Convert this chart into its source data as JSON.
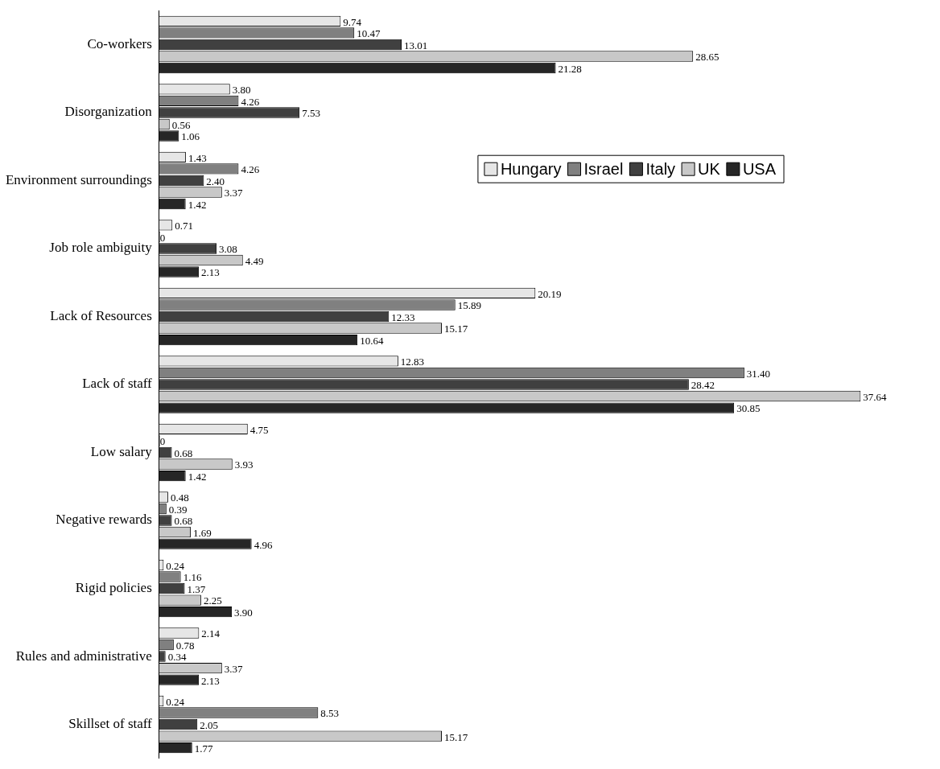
{
  "chart_data": {
    "type": "bar",
    "orientation": "horizontal",
    "categories": [
      "Co-workers",
      "Disorganization",
      "Environment surroundings",
      "Job role ambiguity",
      "Lack of Resources",
      "Lack of staff",
      "Low salary",
      "Negative rewards",
      "Rigid policies",
      "Rules and administrative",
      "Skillset of staff"
    ],
    "series": [
      {
        "name": "Hungary",
        "color": "#e6e6e6",
        "values": [
          9.74,
          3.8,
          1.43,
          0.71,
          20.19,
          12.83,
          4.75,
          0.48,
          0.24,
          2.14,
          0.24
        ],
        "value_labels": [
          "9.74",
          "3.80",
          "1.43",
          "0.71",
          "20.19",
          "12.83",
          "4.75",
          "0.48",
          "0.24",
          "2.14",
          "0.24"
        ]
      },
      {
        "name": "Israel",
        "color": "#808080",
        "values": [
          10.47,
          4.26,
          4.26,
          0,
          15.89,
          31.4,
          0,
          0.39,
          1.16,
          0.78,
          8.53
        ],
        "value_labels": [
          "10.47",
          "4.26",
          "4.26",
          "0",
          "15.89",
          "31.40",
          "0",
          "0.39",
          "1.16",
          "0.78",
          "8.53"
        ]
      },
      {
        "name": "Italy",
        "color": "#404040",
        "values": [
          13.01,
          7.53,
          2.4,
          3.08,
          12.33,
          28.42,
          0.68,
          0.68,
          1.37,
          0.34,
          2.05
        ],
        "value_labels": [
          "13.01",
          "7.53",
          "2.40",
          "3.08",
          "12.33",
          "28.42",
          "0.68",
          "0.68",
          "1.37",
          "0.34",
          "2.05"
        ]
      },
      {
        "name": "UK",
        "color": "#c8c8c8",
        "values": [
          28.65,
          0.56,
          3.37,
          4.49,
          15.17,
          37.64,
          3.93,
          1.69,
          2.25,
          3.37,
          15.17
        ],
        "value_labels": [
          "28.65",
          "0.56",
          "3.37",
          "4.49",
          "15.17",
          "37.64",
          "3.93",
          "1.69",
          "2.25",
          "3.37",
          "15.17"
        ]
      },
      {
        "name": "USA",
        "color": "#262626",
        "values": [
          21.28,
          1.06,
          1.42,
          2.13,
          10.64,
          30.85,
          1.42,
          4.96,
          3.9,
          2.13,
          1.77
        ],
        "value_labels": [
          "21.28",
          "1.06",
          "1.42",
          "2.13",
          "10.64",
          "30.85",
          "1.42",
          "4.96",
          "3.90",
          "2.13",
          "1.77"
        ]
      }
    ],
    "legend": "top right",
    "tick_labels": "y",
    "grid": false
  }
}
